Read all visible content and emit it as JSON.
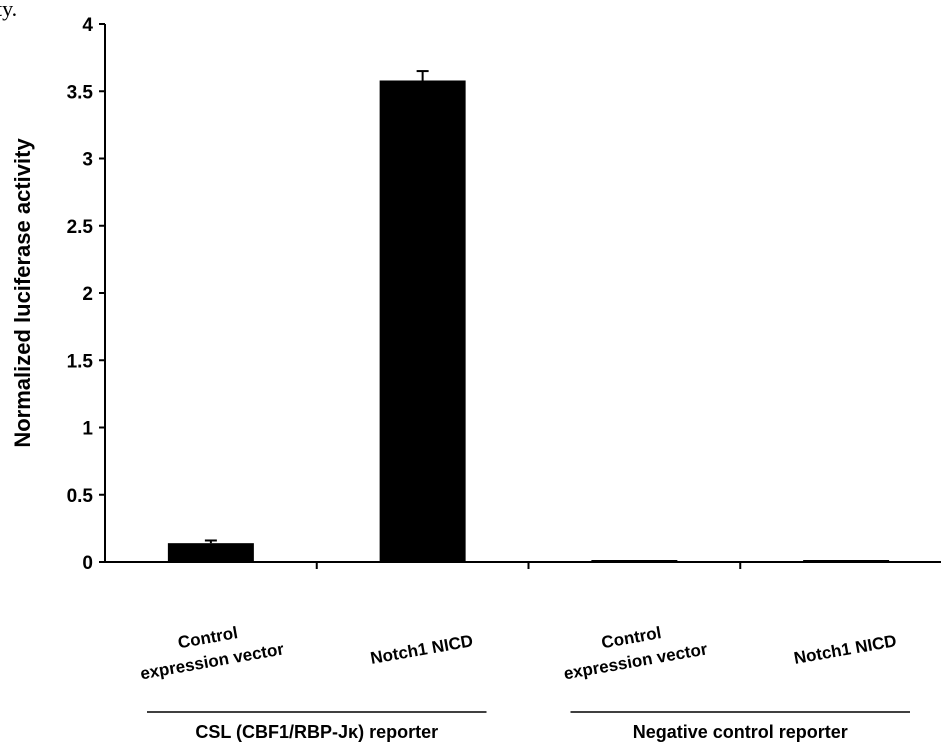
{
  "caption_fragment": "ty.",
  "chart_data": {
    "type": "bar",
    "title": "",
    "xlabel": "",
    "ylabel": "Normalized luciferase activity",
    "ylim": [
      0,
      4
    ],
    "yticks": [
      "0",
      "0.5",
      "1",
      "1.5",
      "2",
      "2.5",
      "3",
      "3.5",
      "4"
    ],
    "grid": false,
    "legend": "none",
    "bar_color": "#000000",
    "categories": [
      [
        "Control",
        "expression vector"
      ],
      [
        "Notch1 NICD"
      ],
      [
        "Control",
        "expression vector"
      ],
      [
        "Notch1 NICD"
      ]
    ],
    "values": [
      0.14,
      3.58,
      0.008,
      0.008
    ],
    "errors": [
      0.02,
      0.07,
      0,
      0
    ],
    "groups": [
      {
        "label": "CSL (CBF1/RBP-Jκ) reporter",
        "categories": [
          0,
          1
        ]
      },
      {
        "label": "Negative control reporter",
        "categories": [
          2,
          3
        ]
      }
    ]
  }
}
